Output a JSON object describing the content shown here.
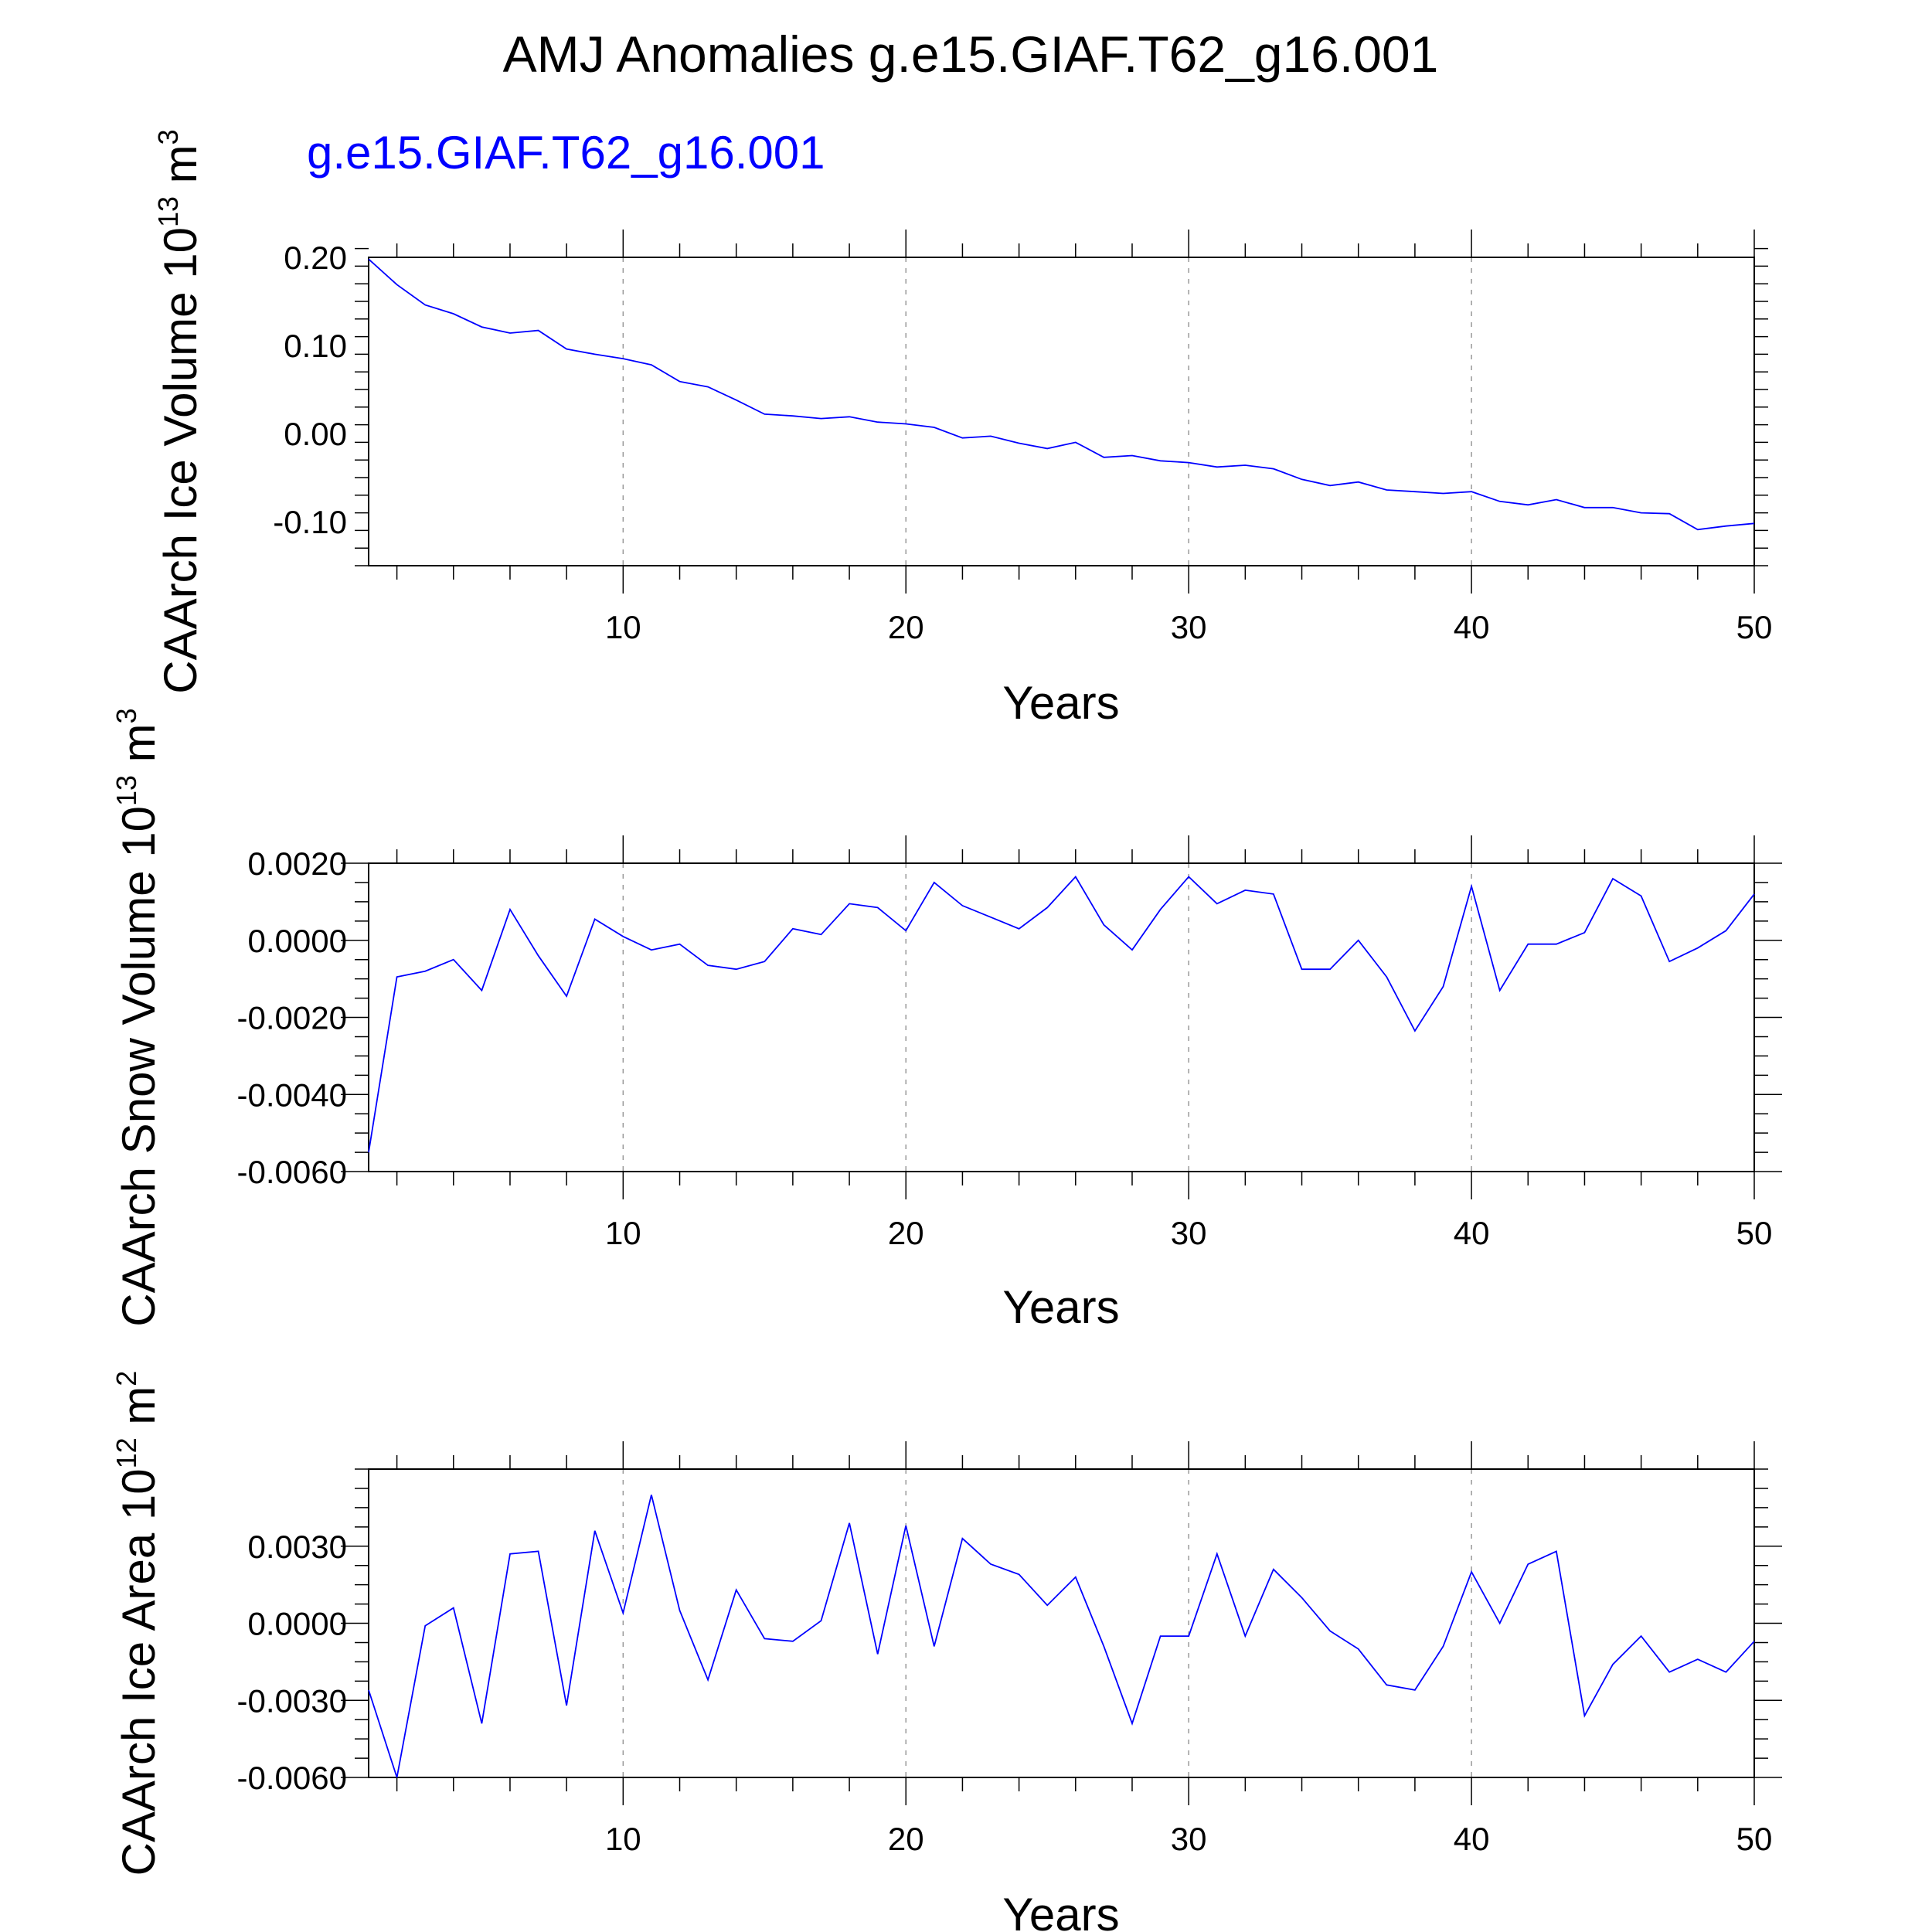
{
  "title": "AMJ Anomalies g.e15.GIAF.T62_g16.001",
  "legend_label": "g.e15.GIAF.T62_g16.001",
  "series_color": "#0000ff",
  "chart_data": [
    {
      "type": "line",
      "name": "ice-volume",
      "ylabel_prefix": "CAArch Ice Volume 10",
      "ylabel_exp": "13",
      "ylabel_unit": " m",
      "ylabel_unit_exp": "3",
      "xlabel": "Years",
      "xlim": [
        1,
        50
      ],
      "ylim": [
        -0.15,
        0.2
      ],
      "yticks": [
        0.2,
        0.1,
        0.0,
        -0.1
      ],
      "yticklabels": [
        "0.20",
        "0.10",
        "0.00",
        "-0.10"
      ],
      "yminor_step": 0.02,
      "xticks": [
        10,
        20,
        30,
        40,
        50
      ],
      "xticklabels": [
        "10",
        "20",
        "30",
        "40",
        "50"
      ],
      "x": [
        1,
        2,
        3,
        4,
        5,
        6,
        7,
        8,
        9,
        10,
        11,
        12,
        13,
        14,
        15,
        16,
        17,
        18,
        19,
        20,
        21,
        22,
        23,
        24,
        25,
        26,
        27,
        28,
        29,
        30,
        31,
        32,
        33,
        34,
        35,
        36,
        37,
        38,
        39,
        40,
        41,
        42,
        43,
        44,
        45,
        46,
        47,
        48,
        49,
        50
      ],
      "values": [
        0.198,
        0.169,
        0.146,
        0.136,
        0.121,
        0.114,
        0.117,
        0.096,
        0.09,
        0.085,
        0.078,
        0.059,
        0.053,
        0.038,
        0.022,
        0.02,
        0.017,
        0.019,
        0.013,
        0.011,
        0.007,
        -0.005,
        -0.003,
        -0.011,
        -0.017,
        -0.01,
        -0.027,
        -0.025,
        -0.031,
        -0.033,
        -0.038,
        -0.036,
        -0.04,
        -0.052,
        -0.059,
        -0.055,
        -0.064,
        -0.066,
        -0.068,
        -0.066,
        -0.077,
        -0.081,
        -0.075,
        -0.084,
        -0.084,
        -0.09,
        -0.091,
        -0.109,
        -0.105,
        -0.102
      ]
    },
    {
      "type": "line",
      "name": "snow-volume",
      "ylabel_prefix": "CAArch Snow Volume 10",
      "ylabel_exp": "13",
      "ylabel_unit": " m",
      "ylabel_unit_exp": "3",
      "xlabel": "Years",
      "xlim": [
        1,
        50
      ],
      "ylim": [
        -0.006,
        0.002
      ],
      "yticks": [
        0.002,
        0.0,
        -0.002,
        -0.004,
        -0.006
      ],
      "yticklabels": [
        "0.0020",
        "0.0000",
        "-0.0020",
        "-0.0040",
        "-0.0060"
      ],
      "yminor_step": 0.0005,
      "xticks": [
        10,
        20,
        30,
        40,
        50
      ],
      "xticklabels": [
        "10",
        "20",
        "30",
        "40",
        "50"
      ],
      "x": [
        1,
        2,
        3,
        4,
        5,
        6,
        7,
        8,
        9,
        10,
        11,
        12,
        13,
        14,
        15,
        16,
        17,
        18,
        19,
        20,
        21,
        22,
        23,
        24,
        25,
        26,
        27,
        28,
        29,
        30,
        31,
        32,
        33,
        34,
        35,
        36,
        37,
        38,
        39,
        40,
        41,
        42,
        43,
        44,
        45,
        46,
        47,
        48,
        49,
        50
      ],
      "values": [
        -0.0055,
        -0.00095,
        -0.0008,
        -0.0005,
        -0.0013,
        0.0008,
        -0.0004,
        -0.00145,
        0.00055,
        0.0001,
        -0.00025,
        -0.0001,
        -0.00065,
        -0.00075,
        -0.00055,
        0.0003,
        0.00015,
        0.00095,
        0.00085,
        0.00025,
        0.0015,
        0.0009,
        0.0006,
        0.0003,
        0.00085,
        0.00165,
        0.0004,
        -0.00025,
        0.0008,
        0.00165,
        0.00095,
        0.0013,
        0.0012,
        -0.00075,
        -0.00075,
        0.0,
        -0.00095,
        -0.00235,
        -0.0012,
        0.0014,
        -0.0013,
        -0.0001,
        -0.0001,
        0.0002,
        0.0016,
        0.00115,
        -0.00055,
        -0.0002,
        0.00025,
        0.0012
      ]
    },
    {
      "type": "line",
      "name": "ice-area",
      "ylabel_prefix": "CAArch Ice Area 10",
      "ylabel_exp": "12",
      "ylabel_unit": " m",
      "ylabel_unit_exp": "2",
      "xlabel": "Years",
      "xlim": [
        1,
        50
      ],
      "ylim": [
        -0.006,
        0.006
      ],
      "yticks": [
        0.003,
        0.0,
        -0.003,
        -0.006
      ],
      "yticklabels": [
        "0.0030",
        "0.0000",
        "-0.0030",
        "-0.0060"
      ],
      "yminor_step": 0.00075,
      "xticks": [
        10,
        20,
        30,
        40,
        50
      ],
      "xticklabels": [
        "10",
        "20",
        "30",
        "40",
        "50"
      ],
      "x": [
        1,
        2,
        3,
        4,
        5,
        6,
        7,
        8,
        9,
        10,
        11,
        12,
        13,
        14,
        15,
        16,
        17,
        18,
        19,
        20,
        21,
        22,
        23,
        24,
        25,
        26,
        27,
        28,
        29,
        30,
        31,
        32,
        33,
        34,
        35,
        36,
        37,
        38,
        39,
        40,
        41,
        42,
        43,
        44,
        45,
        46,
        47,
        48,
        49,
        50
      ],
      "values": [
        -0.0026,
        -0.006,
        -0.0001,
        0.0006,
        -0.0039,
        0.0027,
        0.0028,
        -0.0032,
        0.0036,
        0.0004,
        0.005,
        0.0005,
        -0.0022,
        0.0013,
        -0.0006,
        -0.0007,
        0.0001,
        0.0039,
        -0.0012,
        0.0038,
        -0.0009,
        0.0033,
        0.0023,
        0.0019,
        0.0007,
        0.0018,
        -0.0009,
        -0.0039,
        -0.0005,
        -0.0005,
        0.0027,
        -0.0005,
        0.0021,
        0.001,
        -0.0003,
        -0.001,
        -0.0024,
        -0.0026,
        -0.0009,
        0.002,
        0.0,
        0.0023,
        0.0028,
        -0.0036,
        -0.0016,
        -0.0005,
        -0.0019,
        -0.0014,
        -0.0019,
        -0.0007
      ]
    }
  ]
}
